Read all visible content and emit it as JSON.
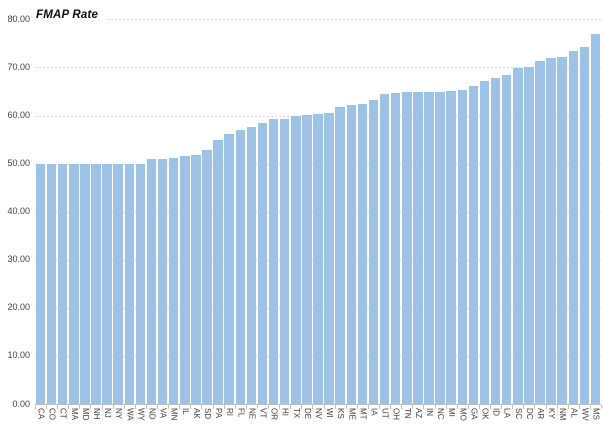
{
  "chart_data": {
    "type": "bar",
    "title": "FMAP Rate",
    "categories": [
      "CA",
      "CO",
      "CT",
      "MA",
      "MD",
      "NH",
      "NJ",
      "NY",
      "WA",
      "WY",
      "ND",
      "VA",
      "MN",
      "IL",
      "AK",
      "SD",
      "PA",
      "RI",
      "FL",
      "NE",
      "VT",
      "OR",
      "HI",
      "TX",
      "DE",
      "NV",
      "WI",
      "KS",
      "ME",
      "MT",
      "IA",
      "UT",
      "OH",
      "TN",
      "AZ",
      "IN",
      "NC",
      "MI",
      "MO",
      "GA",
      "OK",
      "ID",
      "LA",
      "SC",
      "DC",
      "AR",
      "KY",
      "NM",
      "AL",
      "WV",
      "MS"
    ],
    "values": [
      50.0,
      50.0,
      50.0,
      50.0,
      50.0,
      50.0,
      50.0,
      50.0,
      50.0,
      50.0,
      51.0,
      51.0,
      51.2,
      51.55,
      51.75,
      52.9,
      55.0,
      56.25,
      57.1,
      57.6,
      58.5,
      59.2,
      59.25,
      60.0,
      60.05,
      60.25,
      60.6,
      61.75,
      62.3,
      62.5,
      63.3,
      64.45,
      64.7,
      64.9,
      64.9,
      64.95,
      65.0,
      65.1,
      65.3,
      66.25,
      67.2,
      67.8,
      68.4,
      69.8,
      70.0,
      71.4,
      71.9,
      72.1,
      73.5,
      74.2,
      77.0
    ],
    "xlabel": "",
    "ylabel": "",
    "ylim": [
      0,
      80
    ],
    "ytick_interval": 10,
    "ytick_labels": [
      "0.00",
      "10.00",
      "20.00",
      "30.00",
      "40.00",
      "50.00",
      "60.00",
      "70.00",
      "80.00"
    ],
    "grid": "dashed horizontal",
    "legend": "none",
    "bar_color": "#9cc3e5",
    "gridline_color": "#d9d9d9",
    "axis_color": "#bfbfbf",
    "label_color": "#404040",
    "title_color": "#0d0d0d"
  }
}
